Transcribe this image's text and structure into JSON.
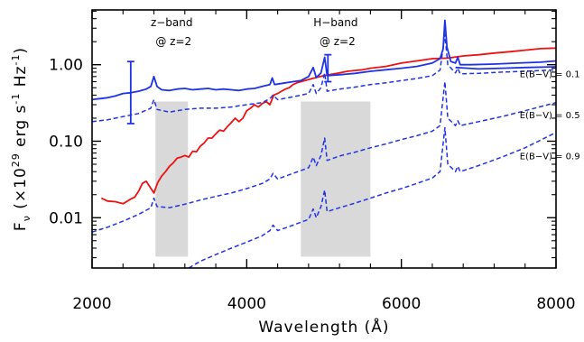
{
  "chart_data": {
    "type": "line",
    "title": "",
    "xlabel": "Wavelength (Å)",
    "ylabel_parts": {
      "prefix": "F",
      "subscript": "ν",
      "mid": " (×10",
      "exp1": "29",
      "unit1": " erg s",
      "exp2": "-1",
      "unit2": " Hz",
      "exp3": "-1",
      "suffix": ")"
    },
    "xlim": [
      2000,
      8000
    ],
    "ylim": [
      0.0022,
      5.2
    ],
    "yscale": "log",
    "x_ticks": [
      {
        "value": 2000,
        "label": "2000"
      },
      {
        "value": 4000,
        "label": "4000"
      },
      {
        "value": 6000,
        "label": "6000"
      },
      {
        "value": 8000,
        "label": "8000"
      }
    ],
    "y_ticks": [
      {
        "value": 0.01,
        "label": "0.01"
      },
      {
        "value": 0.1,
        "label": "0.10"
      },
      {
        "value": 1.0,
        "label": "1.00"
      }
    ],
    "bands": [
      {
        "x0": 2820,
        "x1": 3240,
        "y0": 0.0031,
        "y1": 0.33,
        "line1": "z−band",
        "line2": "@ z=2"
      },
      {
        "x0": 4700,
        "x1": 5600,
        "y0": 0.0031,
        "y1": 0.33,
        "line1": "H−band",
        "line2": "@ z=2"
      }
    ],
    "colors": {
      "blue": "#1f33e6",
      "red": "#ee1111",
      "band": "#d9d9d9"
    },
    "series": [
      {
        "color": "red",
        "style": "solid",
        "points": [
          [
            2120,
            0.018
          ],
          [
            2200,
            0.0165
          ],
          [
            2300,
            0.0162
          ],
          [
            2400,
            0.0152
          ],
          [
            2500,
            0.0175
          ],
          [
            2550,
            0.0185
          ],
          [
            2600,
            0.022
          ],
          [
            2650,
            0.028
          ],
          [
            2700,
            0.03
          ],
          [
            2750,
            0.025
          ],
          [
            2800,
            0.021
          ],
          [
            2850,
            0.029
          ],
          [
            2900,
            0.035
          ],
          [
            2950,
            0.04
          ],
          [
            3000,
            0.047
          ],
          [
            3050,
            0.052
          ],
          [
            3100,
            0.06
          ],
          [
            3150,
            0.062
          ],
          [
            3200,
            0.065
          ],
          [
            3250,
            0.062
          ],
          [
            3300,
            0.074
          ],
          [
            3350,
            0.073
          ],
          [
            3400,
            0.086
          ],
          [
            3450,
            0.095
          ],
          [
            3500,
            0.11
          ],
          [
            3550,
            0.11
          ],
          [
            3600,
            0.125
          ],
          [
            3650,
            0.14
          ],
          [
            3700,
            0.135
          ],
          [
            3750,
            0.155
          ],
          [
            3800,
            0.175
          ],
          [
            3850,
            0.2
          ],
          [
            3900,
            0.18
          ],
          [
            3950,
            0.2
          ],
          [
            4000,
            0.25
          ],
          [
            4050,
            0.27
          ],
          [
            4100,
            0.3
          ],
          [
            4150,
            0.28
          ],
          [
            4200,
            0.31
          ],
          [
            4250,
            0.33
          ],
          [
            4300,
            0.3
          ],
          [
            4350,
            0.4
          ],
          [
            4400,
            0.42
          ],
          [
            4450,
            0.45
          ],
          [
            4500,
            0.48
          ],
          [
            4550,
            0.5
          ],
          [
            4600,
            0.55
          ],
          [
            4650,
            0.58
          ],
          [
            4700,
            0.6
          ],
          [
            4800,
            0.64
          ],
          [
            4900,
            0.68
          ],
          [
            5000,
            0.72
          ],
          [
            5100,
            0.75
          ],
          [
            5200,
            0.78
          ],
          [
            5300,
            0.82
          ],
          [
            5400,
            0.84
          ],
          [
            5500,
            0.86
          ],
          [
            5600,
            0.9
          ],
          [
            5800,
            0.95
          ],
          [
            6000,
            1.05
          ],
          [
            6200,
            1.12
          ],
          [
            6400,
            1.2
          ],
          [
            6600,
            1.22
          ],
          [
            6800,
            1.3
          ],
          [
            7000,
            1.35
          ],
          [
            7200,
            1.42
          ],
          [
            7400,
            1.48
          ],
          [
            7600,
            1.55
          ],
          [
            7800,
            1.62
          ],
          [
            8000,
            1.65
          ]
        ]
      },
      {
        "color": "blue",
        "style": "solid",
        "points": [
          [
            2000,
            0.35
          ],
          [
            2100,
            0.36
          ],
          [
            2200,
            0.37
          ],
          [
            2300,
            0.39
          ],
          [
            2400,
            0.42
          ],
          [
            2500,
            0.43
          ],
          [
            2600,
            0.45
          ],
          [
            2700,
            0.48
          ],
          [
            2760,
            0.52
          ],
          [
            2800,
            0.7
          ],
          [
            2840,
            0.52
          ],
          [
            2900,
            0.47
          ],
          [
            3000,
            0.46
          ],
          [
            3100,
            0.48
          ],
          [
            3200,
            0.49
          ],
          [
            3300,
            0.47
          ],
          [
            3400,
            0.48
          ],
          [
            3500,
            0.49
          ],
          [
            3600,
            0.47
          ],
          [
            3700,
            0.48
          ],
          [
            3800,
            0.47
          ],
          [
            3900,
            0.46
          ],
          [
            4000,
            0.48
          ],
          [
            4100,
            0.49
          ],
          [
            4200,
            0.52
          ],
          [
            4300,
            0.55
          ],
          [
            4330,
            0.67
          ],
          [
            4360,
            0.55
          ],
          [
            4500,
            0.58
          ],
          [
            4600,
            0.6
          ],
          [
            4700,
            0.62
          ],
          [
            4800,
            0.7
          ],
          [
            4860,
            0.92
          ],
          [
            4900,
            0.68
          ],
          [
            4960,
            0.78
          ],
          [
            5008,
            1.25
          ],
          [
            5040,
            0.72
          ],
          [
            5200,
            0.74
          ],
          [
            5400,
            0.77
          ],
          [
            5600,
            0.82
          ],
          [
            5800,
            0.86
          ],
          [
            6000,
            0.9
          ],
          [
            6200,
            0.95
          ],
          [
            6400,
            1.05
          ],
          [
            6500,
            1.2
          ],
          [
            6540,
            1.6
          ],
          [
            6563,
            3.8
          ],
          [
            6590,
            1.7
          ],
          [
            6640,
            1.1
          ],
          [
            6700,
            1.05
          ],
          [
            6730,
            1.25
          ],
          [
            6760,
            1.0
          ],
          [
            6900,
            1.0
          ],
          [
            7200,
            1.02
          ],
          [
            7500,
            1.05
          ],
          [
            7800,
            1.08
          ],
          [
            8000,
            1.12
          ]
        ]
      },
      {
        "color": "blue",
        "style": "solid",
        "points": [
          [
            6700,
            0.92
          ],
          [
            7000,
            0.88
          ],
          [
            7300,
            0.9
          ],
          [
            7600,
            0.92
          ],
          [
            8000,
            0.94
          ]
        ]
      },
      {
        "color": "blue",
        "style": "dashed",
        "label": "E(B−V) = 0.1",
        "label_pos": [
          7530,
          0.69
        ],
        "points": [
          [
            2000,
            0.18
          ],
          [
            2200,
            0.19
          ],
          [
            2400,
            0.21
          ],
          [
            2600,
            0.23
          ],
          [
            2760,
            0.27
          ],
          [
            2800,
            0.35
          ],
          [
            2840,
            0.26
          ],
          [
            3000,
            0.24
          ],
          [
            3200,
            0.26
          ],
          [
            3400,
            0.27
          ],
          [
            3600,
            0.27
          ],
          [
            3800,
            0.28
          ],
          [
            4000,
            0.3
          ],
          [
            4200,
            0.32
          ],
          [
            4300,
            0.36
          ],
          [
            4340,
            0.4
          ],
          [
            4400,
            0.35
          ],
          [
            4600,
            0.38
          ],
          [
            4800,
            0.42
          ],
          [
            4860,
            0.55
          ],
          [
            4900,
            0.42
          ],
          [
            4960,
            0.5
          ],
          [
            5008,
            0.78
          ],
          [
            5040,
            0.45
          ],
          [
            5200,
            0.48
          ],
          [
            5400,
            0.51
          ],
          [
            5600,
            0.55
          ],
          [
            5800,
            0.58
          ],
          [
            6000,
            0.62
          ],
          [
            6200,
            0.66
          ],
          [
            6400,
            0.72
          ],
          [
            6500,
            0.85
          ],
          [
            6563,
            2.5
          ],
          [
            6600,
            1.0
          ],
          [
            6700,
            0.78
          ],
          [
            6730,
            0.9
          ],
          [
            6760,
            0.76
          ],
          [
            7000,
            0.77
          ],
          [
            7300,
            0.8
          ],
          [
            7600,
            0.82
          ],
          [
            8000,
            0.86
          ]
        ]
      },
      {
        "color": "blue",
        "style": "dashed",
        "label": "E(B−V) = 0.5",
        "label_pos": [
          7530,
          0.2
        ],
        "points": [
          [
            2000,
            0.0065
          ],
          [
            2200,
            0.0075
          ],
          [
            2400,
            0.009
          ],
          [
            2600,
            0.011
          ],
          [
            2760,
            0.0135
          ],
          [
            2800,
            0.018
          ],
          [
            2840,
            0.014
          ],
          [
            3000,
            0.0135
          ],
          [
            3200,
            0.015
          ],
          [
            3400,
            0.017
          ],
          [
            3600,
            0.019
          ],
          [
            3800,
            0.021
          ],
          [
            4000,
            0.024
          ],
          [
            4200,
            0.028
          ],
          [
            4300,
            0.032
          ],
          [
            4340,
            0.038
          ],
          [
            4400,
            0.032
          ],
          [
            4600,
            0.038
          ],
          [
            4800,
            0.045
          ],
          [
            4860,
            0.062
          ],
          [
            4900,
            0.048
          ],
          [
            4960,
            0.065
          ],
          [
            5008,
            0.11
          ],
          [
            5040,
            0.056
          ],
          [
            5200,
            0.064
          ],
          [
            5400,
            0.072
          ],
          [
            5600,
            0.082
          ],
          [
            5800,
            0.092
          ],
          [
            6000,
            0.105
          ],
          [
            6200,
            0.118
          ],
          [
            6400,
            0.135
          ],
          [
            6500,
            0.16
          ],
          [
            6563,
            0.6
          ],
          [
            6600,
            0.2
          ],
          [
            6700,
            0.16
          ],
          [
            6730,
            0.185
          ],
          [
            6760,
            0.16
          ],
          [
            7000,
            0.18
          ],
          [
            7300,
            0.21
          ],
          [
            7600,
            0.25
          ],
          [
            8000,
            0.32
          ]
        ]
      },
      {
        "color": "blue",
        "style": "dashed",
        "label": "E(B−V) = 0.9",
        "label_pos": [
          7530,
          0.058
        ],
        "points": [
          [
            3250,
            0.0022
          ],
          [
            3400,
            0.0027
          ],
          [
            3600,
            0.0033
          ],
          [
            3800,
            0.004
          ],
          [
            4000,
            0.0048
          ],
          [
            4200,
            0.0058
          ],
          [
            4300,
            0.0068
          ],
          [
            4340,
            0.008
          ],
          [
            4400,
            0.0068
          ],
          [
            4600,
            0.008
          ],
          [
            4800,
            0.0095
          ],
          [
            4860,
            0.013
          ],
          [
            4900,
            0.01
          ],
          [
            4960,
            0.014
          ],
          [
            5008,
            0.023
          ],
          [
            5040,
            0.012
          ],
          [
            5200,
            0.0135
          ],
          [
            5400,
            0.0155
          ],
          [
            5600,
            0.018
          ],
          [
            5800,
            0.021
          ],
          [
            6000,
            0.024
          ],
          [
            6200,
            0.028
          ],
          [
            6400,
            0.033
          ],
          [
            6500,
            0.04
          ],
          [
            6563,
            0.15
          ],
          [
            6600,
            0.05
          ],
          [
            6700,
            0.04
          ],
          [
            6730,
            0.047
          ],
          [
            6760,
            0.04
          ],
          [
            7000,
            0.048
          ],
          [
            7300,
            0.062
          ],
          [
            7600,
            0.082
          ],
          [
            8000,
            0.13
          ]
        ]
      }
    ],
    "error_bars": [
      {
        "x": 2500,
        "y": 0.43,
        "ylow": 0.17,
        "yhigh": 1.1,
        "color": "blue"
      },
      {
        "x": 5050,
        "y": 0.85,
        "ylow": 0.6,
        "yhigh": 1.35,
        "color": "blue"
      }
    ]
  }
}
